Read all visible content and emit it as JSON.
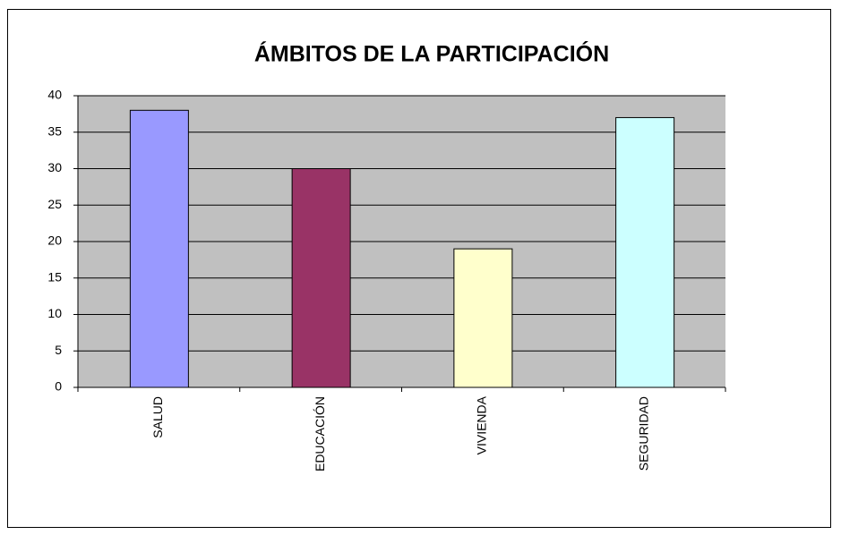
{
  "chart_data": {
    "type": "bar",
    "title": "ÁMBITOS DE LA PARTICIPACIÓN",
    "categories": [
      "SALUD",
      "EDUCACIÓN",
      "VIVIENDA",
      "SEGURIDAD"
    ],
    "values": [
      38,
      30,
      19,
      37
    ],
    "colors": [
      "#9999ff",
      "#993366",
      "#ffffcc",
      "#ccffff"
    ],
    "ylim": [
      0,
      40
    ],
    "yticks": [
      0,
      5,
      10,
      15,
      20,
      25,
      30,
      35,
      40
    ],
    "grid": true
  }
}
